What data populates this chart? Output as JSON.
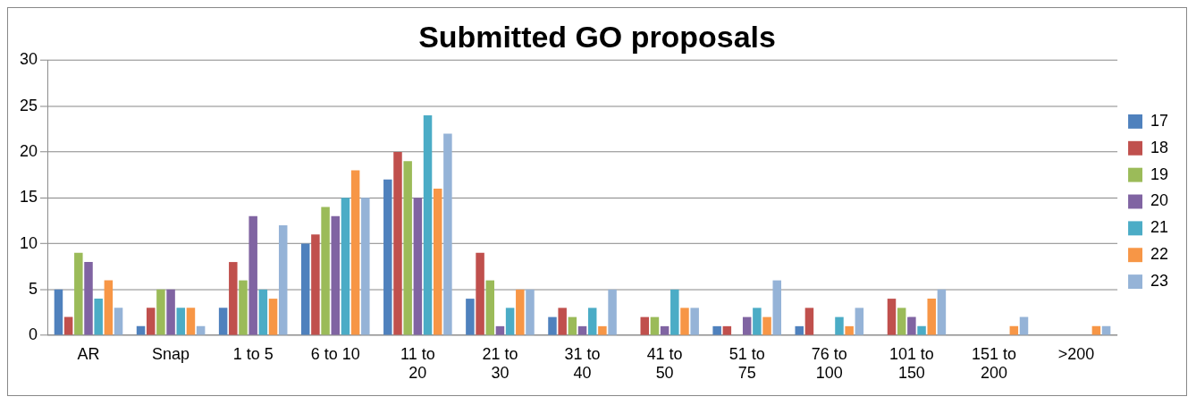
{
  "chart_data": {
    "type": "bar",
    "title": "Submitted GO proposals",
    "categories": [
      "AR",
      "Snap",
      "1 to 5",
      "6 to 10",
      "11 to 20",
      "21 to 30",
      "31 to 40",
      "41 to 50",
      "51 to 75",
      "76 to 100",
      "101 to 150",
      "151 to 200",
      ">200"
    ],
    "series": [
      {
        "name": "17",
        "color": "#4f81bd",
        "values": [
          5,
          1,
          3,
          10,
          17,
          4,
          2,
          0,
          1,
          1,
          0,
          0,
          0
        ]
      },
      {
        "name": "18",
        "color": "#c0504d",
        "values": [
          2,
          3,
          8,
          11,
          20,
          9,
          3,
          2,
          1,
          3,
          4,
          0,
          0
        ]
      },
      {
        "name": "19",
        "color": "#9bbb59",
        "values": [
          9,
          5,
          6,
          14,
          19,
          6,
          2,
          2,
          0,
          0,
          3,
          0,
          0
        ]
      },
      {
        "name": "20",
        "color": "#8064a2",
        "values": [
          8,
          5,
          13,
          13,
          15,
          1,
          1,
          1,
          2,
          0,
          2,
          0,
          0
        ]
      },
      {
        "name": "21",
        "color": "#4bacc6",
        "values": [
          4,
          3,
          5,
          15,
          24,
          3,
          3,
          5,
          3,
          2,
          1,
          0,
          0
        ]
      },
      {
        "name": "22",
        "color": "#f79646",
        "values": [
          6,
          3,
          4,
          18,
          16,
          5,
          1,
          3,
          2,
          1,
          4,
          1,
          1
        ]
      },
      {
        "name": "23",
        "color": "#95b3d7",
        "values": [
          3,
          1,
          12,
          15,
          22,
          5,
          5,
          3,
          6,
          3,
          5,
          2,
          1
        ]
      }
    ],
    "ylim": [
      0,
      30
    ],
    "yticks": [
      0,
      5,
      10,
      15,
      20,
      25,
      30
    ],
    "grid": "y",
    "legend": "right"
  }
}
